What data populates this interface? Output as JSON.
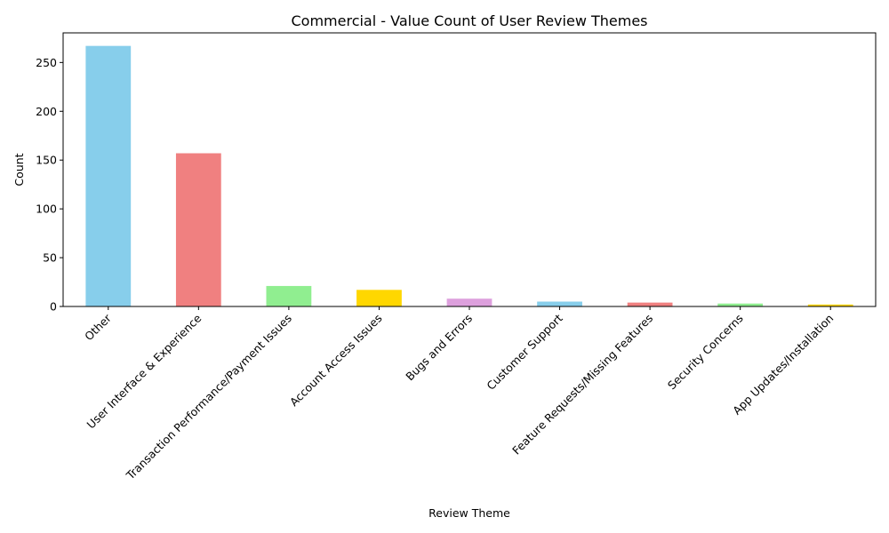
{
  "chart_data": {
    "type": "bar",
    "title": "Commercial - Value Count of User Review Themes",
    "xlabel": "Review Theme",
    "ylabel": "Count",
    "categories": [
      "Other",
      "User Interface & Experience",
      "Transaction Performance/Payment Issues",
      "Account Access Issues",
      "Bugs and Errors",
      "Customer Support",
      "Feature Requests/Missing Features",
      "Security Concerns",
      "App Updates/Installation"
    ],
    "values": [
      267,
      157,
      21,
      17,
      8,
      5,
      4,
      3,
      2
    ],
    "colors": [
      "#87ceeb",
      "#f08080",
      "#90ee90",
      "#ffd700",
      "#dda0dd",
      "#87ceeb",
      "#f08080",
      "#90ee90",
      "#ffd700"
    ],
    "ylim": [
      0,
      280.35
    ],
    "yticks": [
      0,
      50,
      100,
      150,
      200,
      250
    ],
    "grid": false,
    "legend": "none"
  }
}
